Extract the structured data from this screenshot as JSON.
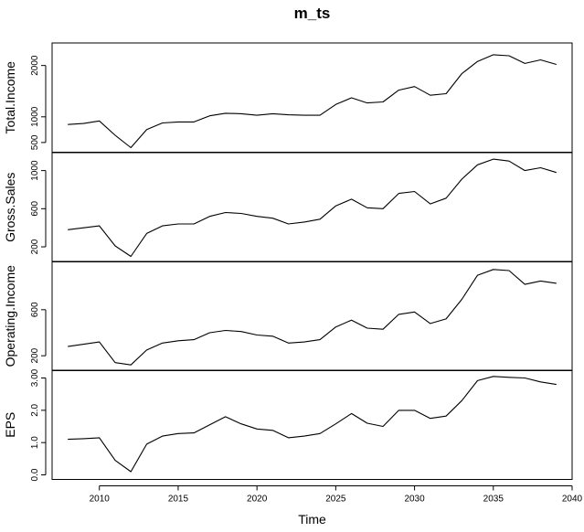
{
  "chart_data": {
    "type": "line",
    "title": "m_ts",
    "xlabel": "Time",
    "xlim": [
      2007,
      2040
    ],
    "xticks": [
      2010,
      2015,
      2020,
      2025,
      2030,
      2035,
      2040
    ],
    "x": [
      2008,
      2009,
      2010,
      2011,
      2012,
      2013,
      2014,
      2015,
      2016,
      2017,
      2018,
      2019,
      2020,
      2021,
      2022,
      2023,
      2024,
      2025,
      2026,
      2027,
      2028,
      2029,
      2030,
      2031,
      2032,
      2033,
      2034,
      2035,
      2036,
      2037,
      2038,
      2039
    ],
    "series": [
      {
        "name": "Total.Income",
        "ylim": [
          400,
          2350
        ],
        "yticks": [
          500,
          1000,
          2000
        ],
        "values": [
          850,
          870,
          920,
          640,
          400,
          750,
          880,
          900,
          900,
          1020,
          1070,
          1060,
          1030,
          1060,
          1040,
          1030,
          1030,
          1240,
          1370,
          1270,
          1290,
          1520,
          1590,
          1420,
          1450,
          1840,
          2080,
          2210,
          2190,
          2040,
          2110,
          2020
        ]
      },
      {
        "name": "Gross.Sales",
        "ylim": [
          90,
          1140
        ],
        "yticks": [
          200,
          600,
          1000
        ],
        "values": [
          380,
          400,
          420,
          210,
          100,
          340,
          420,
          440,
          440,
          520,
          560,
          550,
          520,
          500,
          440,
          460,
          490,
          630,
          700,
          610,
          600,
          760,
          780,
          650,
          710,
          910,
          1060,
          1120,
          1100,
          1000,
          1030,
          980
        ]
      },
      {
        "name": "Operating.Income",
        "ylim": [
          110,
          980
        ],
        "yticks": [
          200,
          600
        ],
        "values": [
          280,
          300,
          320,
          140,
          120,
          250,
          310,
          330,
          340,
          400,
          420,
          410,
          380,
          370,
          310,
          320,
          340,
          450,
          510,
          440,
          430,
          560,
          580,
          480,
          520,
          690,
          900,
          950,
          940,
          820,
          850,
          830
        ]
      },
      {
        "name": "EPS",
        "ylim": [
          0,
          3.1
        ],
        "yticks": [
          0.0,
          1.0,
          2.0,
          3.0
        ],
        "yticklabels": [
          "0.0",
          "1.0",
          "2.0",
          "3.00"
        ],
        "values": [
          1.1,
          1.12,
          1.15,
          0.45,
          0.1,
          0.95,
          1.2,
          1.28,
          1.3,
          1.55,
          1.8,
          1.58,
          1.42,
          1.38,
          1.15,
          1.2,
          1.28,
          1.58,
          1.9,
          1.6,
          1.5,
          2.0,
          2.0,
          1.75,
          1.82,
          2.3,
          2.92,
          3.05,
          3.02,
          3.0,
          2.88,
          2.8
        ]
      }
    ],
    "grid": false,
    "legend": "none"
  }
}
